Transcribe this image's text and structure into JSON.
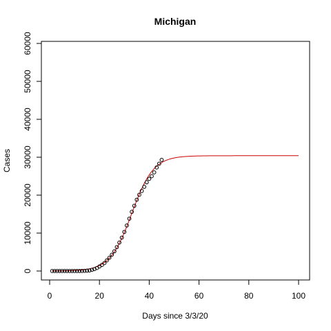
{
  "chart_data": {
    "type": "scatter",
    "title": "Michigan",
    "xlabel": "Days since 3/3/20",
    "ylabel": "Cases",
    "xlim": [
      0,
      100
    ],
    "ylim": [
      0,
      60000
    ],
    "x_ticks": [
      0,
      20,
      40,
      60,
      80,
      100
    ],
    "y_ticks": [
      0,
      10000,
      20000,
      30000,
      40000,
      50000,
      60000
    ],
    "grid": false,
    "legend": "none",
    "series": [
      {
        "kind": "points",
        "color": "#000000",
        "marker": "open-circle",
        "x": [
          1,
          2,
          3,
          4,
          5,
          6,
          7,
          8,
          9,
          10,
          11,
          12,
          13,
          14,
          15,
          16,
          17,
          18,
          19,
          20,
          21,
          22,
          23,
          24,
          25,
          26,
          27,
          28,
          29,
          30,
          31,
          32,
          33,
          34,
          35,
          36,
          37,
          38,
          39,
          40,
          41,
          42,
          43,
          44,
          45
        ],
        "y": [
          0,
          0,
          0,
          0,
          0,
          0,
          0,
          0,
          0,
          0,
          0,
          0,
          25,
          50,
          80,
          150,
          300,
          500,
          800,
          1200,
          1600,
          2100,
          2800,
          3500,
          4300,
          5200,
          6300,
          7500,
          8800,
          10300,
          12000,
          13800,
          15600,
          17200,
          18800,
          20100,
          21100,
          22200,
          23400,
          24300,
          25000,
          26000,
          27300,
          28300,
          29300
        ]
      },
      {
        "kind": "line",
        "color": "#cc0000",
        "model": "logistic",
        "asymptote": 30400,
        "midpoint": 33,
        "rate": 0.23,
        "x_range": [
          1,
          100
        ]
      }
    ]
  }
}
